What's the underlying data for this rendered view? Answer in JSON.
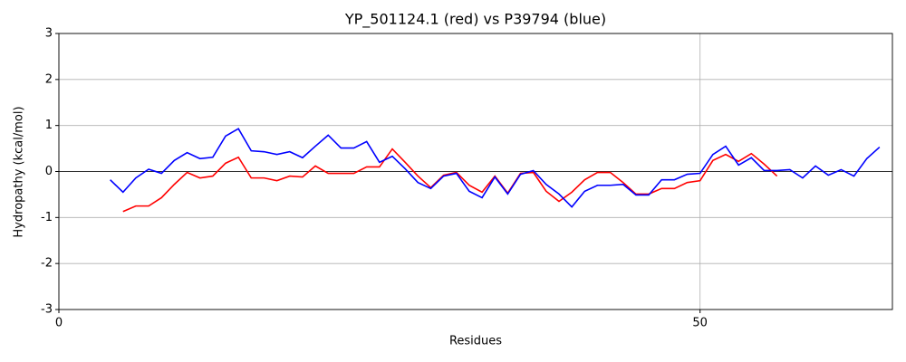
{
  "chart_data": {
    "type": "line",
    "title": "YP_501124.1 (red) vs P39794 (blue)",
    "xlabel": "Residues",
    "ylabel": "Hydropathy (kcal/mol)",
    "xlim": [
      0,
      65
    ],
    "xticks": [
      0,
      50
    ],
    "ylim": [
      -3,
      3
    ],
    "yticks": [
      -3,
      -2,
      -1,
      0,
      1,
      2,
      3
    ],
    "grid": true,
    "hline": 0,
    "series": [
      {
        "color": "#ff0000",
        "x_start": 5,
        "x": [
          5,
          6,
          7,
          8,
          9,
          10,
          11,
          12,
          13,
          14,
          15,
          16,
          17,
          18,
          19,
          20,
          21,
          22,
          23,
          24,
          25,
          26,
          27,
          28,
          29,
          30,
          31,
          32,
          33,
          34,
          35,
          36,
          37,
          38,
          39,
          40,
          41,
          42,
          43,
          44,
          45,
          46,
          47,
          48,
          49,
          50,
          51,
          52,
          53,
          54,
          55,
          56
        ],
        "values": [
          -0.87,
          -0.75,
          -0.75,
          -0.57,
          -0.28,
          -0.02,
          -0.14,
          -0.1,
          0.18,
          0.31,
          -0.14,
          -0.14,
          -0.2,
          -0.1,
          -0.12,
          0.12,
          -0.04,
          -0.04,
          -0.04,
          0.1,
          0.1,
          0.49,
          0.2,
          -0.1,
          -0.35,
          -0.08,
          -0.02,
          -0.3,
          -0.45,
          -0.1,
          -0.47,
          -0.04,
          -0.02,
          -0.43,
          -0.65,
          -0.45,
          -0.18,
          -0.02,
          -0.02,
          -0.24,
          -0.49,
          -0.49,
          -0.37,
          -0.37,
          -0.24,
          -0.2,
          0.24,
          0.37,
          0.22,
          0.39,
          0.16,
          -0.1
        ]
      },
      {
        "color": "#0000ff",
        "x": [
          4,
          5,
          6,
          7,
          8,
          9,
          10,
          11,
          12,
          13,
          14,
          15,
          16,
          17,
          18,
          19,
          20,
          21,
          22,
          23,
          24,
          25,
          26,
          27,
          28,
          29,
          30,
          31,
          32,
          33,
          34,
          35,
          36,
          37,
          38,
          39,
          40,
          41,
          42,
          43,
          44,
          45,
          46,
          47,
          48,
          49,
          50,
          51,
          52,
          53,
          54,
          55,
          56,
          57,
          58,
          59,
          60,
          61,
          62,
          63,
          64
        ],
        "values": [
          -0.18,
          -0.45,
          -0.14,
          0.05,
          -0.04,
          0.24,
          0.41,
          0.28,
          0.31,
          0.77,
          0.93,
          0.45,
          0.43,
          0.37,
          0.43,
          0.3,
          0.55,
          0.79,
          0.51,
          0.51,
          0.65,
          0.2,
          0.33,
          0.06,
          -0.24,
          -0.37,
          -0.1,
          -0.04,
          -0.43,
          -0.57,
          -0.12,
          -0.49,
          -0.06,
          0.02,
          -0.28,
          -0.49,
          -0.77,
          -0.43,
          -0.3,
          -0.3,
          -0.28,
          -0.51,
          -0.51,
          -0.18,
          -0.18,
          -0.06,
          -0.04,
          0.37,
          0.55,
          0.14,
          0.3,
          0.02,
          0.02,
          0.04,
          -0.14,
          0.12,
          -0.08,
          0.04,
          -0.1,
          0.28,
          0.53
        ]
      }
    ]
  }
}
